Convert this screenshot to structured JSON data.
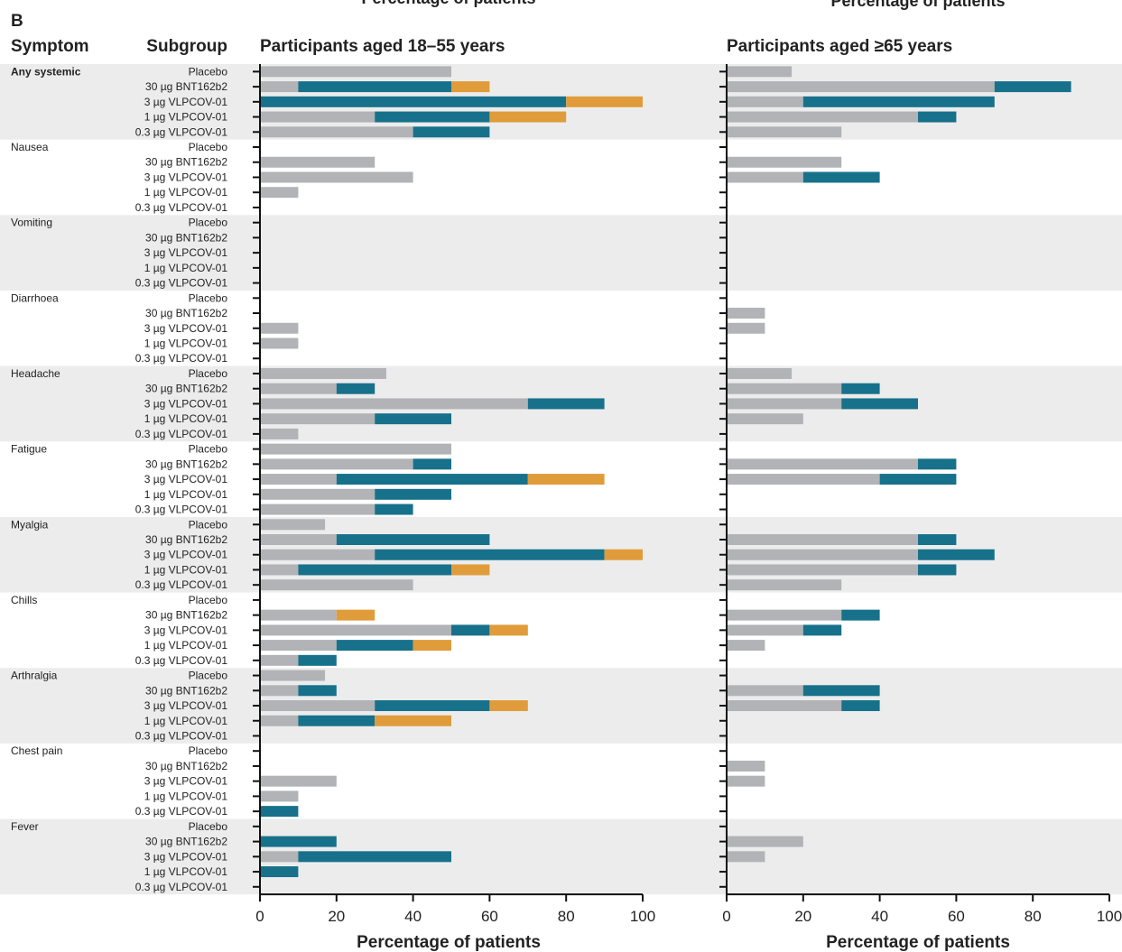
{
  "chart_data": {
    "type": "bar",
    "stacked": true,
    "panel_letter": "B",
    "top_cut_labels": [
      "Percentage of patients",
      "Percentage of patients"
    ],
    "column_headers": {
      "symptom": "Symptom",
      "subgroup": "Subgroup"
    },
    "subgroups": [
      "Placebo",
      "30 µg BNT162b2",
      "3 µg VLPCOV-01",
      "1 µg VLPCOV-01",
      "0.3 µg VLPCOV-01"
    ],
    "symptoms": [
      "Any systemic",
      "Nausea",
      "Vomiting",
      "Diarrhoea",
      "Headache",
      "Fatigue",
      "Myalgia",
      "Chills",
      "Arthralgia",
      "Chest pain",
      "Fever"
    ],
    "series_colors": [
      "#b1b3b6",
      "#17718a",
      "#e09c3a"
    ],
    "xlim": [
      0,
      100
    ],
    "xticks": [
      0,
      20,
      40,
      60,
      80,
      100
    ],
    "xlabel": "Percentage of patients",
    "grid": false,
    "panels": [
      {
        "title": "Participants aged 18–55 years",
        "rows": [
          [
            [
              50,
              0,
              0
            ],
            [
              10,
              40,
              10
            ],
            [
              0,
              80,
              20
            ],
            [
              30,
              30,
              20
            ],
            [
              40,
              20,
              0
            ]
          ],
          [
            [
              0,
              0,
              0
            ],
            [
              30,
              0,
              0
            ],
            [
              40,
              0,
              0
            ],
            [
              10,
              0,
              0
            ],
            [
              0,
              0,
              0
            ]
          ],
          [
            [
              0,
              0,
              0
            ],
            [
              0,
              0,
              0
            ],
            [
              0,
              0,
              0
            ],
            [
              0,
              0,
              0
            ],
            [
              0,
              0,
              0
            ]
          ],
          [
            [
              0,
              0,
              0
            ],
            [
              0,
              0,
              0
            ],
            [
              10,
              0,
              0
            ],
            [
              10,
              0,
              0
            ],
            [
              0,
              0,
              0
            ]
          ],
          [
            [
              33,
              0,
              0
            ],
            [
              20,
              10,
              0
            ],
            [
              70,
              20,
              0
            ],
            [
              30,
              20,
              0
            ],
            [
              10,
              0,
              0
            ]
          ],
          [
            [
              50,
              0,
              0
            ],
            [
              40,
              10,
              0
            ],
            [
              20,
              50,
              20
            ],
            [
              30,
              20,
              0
            ],
            [
              30,
              10,
              0
            ]
          ],
          [
            [
              17,
              0,
              0
            ],
            [
              20,
              40,
              0
            ],
            [
              30,
              60,
              10
            ],
            [
              10,
              40,
              10
            ],
            [
              40,
              0,
              0
            ]
          ],
          [
            [
              0,
              0,
              0
            ],
            [
              20,
              0,
              10
            ],
            [
              50,
              10,
              10
            ],
            [
              20,
              20,
              10
            ],
            [
              10,
              10,
              0
            ]
          ],
          [
            [
              17,
              0,
              0
            ],
            [
              10,
              10,
              0
            ],
            [
              30,
              30,
              10
            ],
            [
              10,
              20,
              20
            ],
            [
              0,
              0,
              0
            ]
          ],
          [
            [
              0,
              0,
              0
            ],
            [
              0,
              0,
              0
            ],
            [
              20,
              0,
              0
            ],
            [
              10,
              0,
              0
            ],
            [
              0,
              10,
              0
            ]
          ],
          [
            [
              0,
              0,
              0
            ],
            [
              0,
              20,
              0
            ],
            [
              10,
              40,
              0
            ],
            [
              0,
              10,
              0
            ],
            [
              0,
              0,
              0
            ]
          ]
        ]
      },
      {
        "title": "Participants aged ≥65 years",
        "rows": [
          [
            [
              17,
              0,
              0
            ],
            [
              70,
              20,
              0
            ],
            [
              20,
              50,
              0
            ],
            [
              50,
              10,
              0
            ],
            [
              30,
              0,
              0
            ]
          ],
          [
            [
              0,
              0,
              0
            ],
            [
              30,
              0,
              0
            ],
            [
              20,
              20,
              0
            ],
            [
              0,
              0,
              0
            ],
            [
              0,
              0,
              0
            ]
          ],
          [
            [
              0,
              0,
              0
            ],
            [
              0,
              0,
              0
            ],
            [
              0,
              0,
              0
            ],
            [
              0,
              0,
              0
            ],
            [
              0,
              0,
              0
            ]
          ],
          [
            [
              0,
              0,
              0
            ],
            [
              10,
              0,
              0
            ],
            [
              10,
              0,
              0
            ],
            [
              0,
              0,
              0
            ],
            [
              0,
              0,
              0
            ]
          ],
          [
            [
              17,
              0,
              0
            ],
            [
              30,
              10,
              0
            ],
            [
              30,
              20,
              0
            ],
            [
              20,
              0,
              0
            ],
            [
              0,
              0,
              0
            ]
          ],
          [
            [
              0,
              0,
              0
            ],
            [
              50,
              10,
              0
            ],
            [
              40,
              20,
              0
            ],
            [
              0,
              0,
              0
            ],
            [
              0,
              0,
              0
            ]
          ],
          [
            [
              0,
              0,
              0
            ],
            [
              50,
              10,
              0
            ],
            [
              50,
              20,
              0
            ],
            [
              50,
              10,
              0
            ],
            [
              30,
              0,
              0
            ]
          ],
          [
            [
              0,
              0,
              0
            ],
            [
              30,
              10,
              0
            ],
            [
              20,
              10,
              0
            ],
            [
              10,
              0,
              0
            ],
            [
              0,
              0,
              0
            ]
          ],
          [
            [
              0,
              0,
              0
            ],
            [
              20,
              20,
              0
            ],
            [
              30,
              10,
              0
            ],
            [
              0,
              0,
              0
            ],
            [
              0,
              0,
              0
            ]
          ],
          [
            [
              0,
              0,
              0
            ],
            [
              10,
              0,
              0
            ],
            [
              10,
              0,
              0
            ],
            [
              0,
              0,
              0
            ],
            [
              0,
              0,
              0
            ]
          ],
          [
            [
              0,
              0,
              0
            ],
            [
              20,
              0,
              0
            ],
            [
              10,
              0,
              0
            ],
            [
              0,
              0,
              0
            ],
            [
              0,
              0,
              0
            ]
          ]
        ]
      }
    ]
  }
}
